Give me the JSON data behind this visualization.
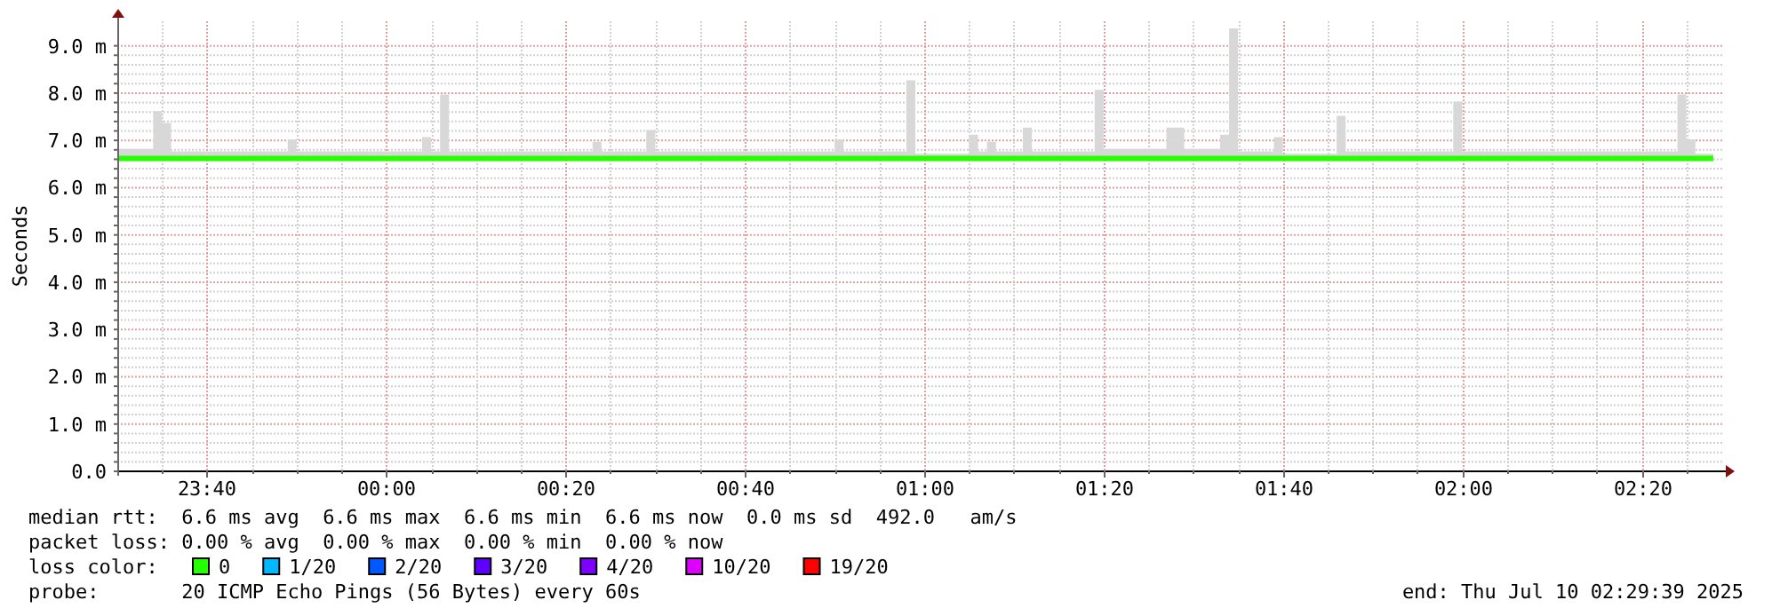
{
  "chart_data": {
    "type": "line",
    "ylabel": "Seconds",
    "legend_title": "loss color:",
    "legend": "bottom",
    "grid": true,
    "line_style": "solid",
    "marker": "none",
    "xlim": [
      "2025-07-09T23:30",
      "2025-07-10T02:29"
    ],
    "xticks": [
      {
        "value": "2025-07-09T23:35",
        "label": null
      },
      {
        "value": "2025-07-09T23:40",
        "label": "23:40"
      },
      {
        "value": "2025-07-09T23:45",
        "label": null
      },
      {
        "value": "2025-07-09T23:50",
        "label": null
      },
      {
        "value": "2025-07-09T23:55",
        "label": null
      },
      {
        "value": "2025-07-10T00:00",
        "label": "00:00"
      },
      {
        "value": "2025-07-10T00:05",
        "label": null
      },
      {
        "value": "2025-07-10T00:10",
        "label": null
      },
      {
        "value": "2025-07-10T00:15",
        "label": null
      },
      {
        "value": "2025-07-10T00:20",
        "label": "00:20"
      },
      {
        "value": "2025-07-10T00:25",
        "label": null
      },
      {
        "value": "2025-07-10T00:30",
        "label": null
      },
      {
        "value": "2025-07-10T00:35",
        "label": null
      },
      {
        "value": "2025-07-10T00:40",
        "label": "00:40"
      },
      {
        "value": "2025-07-10T00:45",
        "label": null
      },
      {
        "value": "2025-07-10T00:50",
        "label": null
      },
      {
        "value": "2025-07-10T00:55",
        "label": null
      },
      {
        "value": "2025-07-10T01:00",
        "label": "01:00"
      },
      {
        "value": "2025-07-10T01:05",
        "label": null
      },
      {
        "value": "2025-07-10T01:10",
        "label": null
      },
      {
        "value": "2025-07-10T01:15",
        "label": null
      },
      {
        "value": "2025-07-10T01:20",
        "label": "01:20"
      },
      {
        "value": "2025-07-10T01:25",
        "label": null
      },
      {
        "value": "2025-07-10T01:30",
        "label": null
      },
      {
        "value": "2025-07-10T01:35",
        "label": null
      },
      {
        "value": "2025-07-10T01:40",
        "label": "01:40"
      },
      {
        "value": "2025-07-10T01:45",
        "label": null
      },
      {
        "value": "2025-07-10T01:50",
        "label": null
      },
      {
        "value": "2025-07-10T01:55",
        "label": null
      },
      {
        "value": "2025-07-10T02:00",
        "label": "02:00"
      },
      {
        "value": "2025-07-10T02:05",
        "label": null
      },
      {
        "value": "2025-07-10T02:10",
        "label": null
      },
      {
        "value": "2025-07-10T02:15",
        "label": null
      },
      {
        "value": "2025-07-10T02:20",
        "label": "02:20"
      },
      {
        "value": "2025-07-10T02:25",
        "label": null
      }
    ],
    "ylim": [
      0,
      9.5
    ],
    "yticks": [
      {
        "value": 0,
        "label": "0.0"
      },
      {
        "value": 0.2,
        "label": null
      },
      {
        "value": 0.4,
        "label": null
      },
      {
        "value": 0.6,
        "label": null
      },
      {
        "value": 0.8,
        "label": null
      },
      {
        "value": 1,
        "label": "1.0 m"
      },
      {
        "value": 1.2,
        "label": null
      },
      {
        "value": 1.4,
        "label": null
      },
      {
        "value": 1.6,
        "label": null
      },
      {
        "value": 1.8,
        "label": null
      },
      {
        "value": 2,
        "label": "2.0 m"
      },
      {
        "value": 2.2,
        "label": null
      },
      {
        "value": 2.4,
        "label": null
      },
      {
        "value": 2.6,
        "label": null
      },
      {
        "value": 2.8,
        "label": null
      },
      {
        "value": 3,
        "label": "3.0 m"
      },
      {
        "value": 3.2,
        "label": null
      },
      {
        "value": 3.4,
        "label": null
      },
      {
        "value": 3.6,
        "label": null
      },
      {
        "value": 3.8,
        "label": null
      },
      {
        "value": 4,
        "label": "4.0 m"
      },
      {
        "value": 4.2,
        "label": null
      },
      {
        "value": 4.4,
        "label": null
      },
      {
        "value": 4.6,
        "label": null
      },
      {
        "value": 4.8,
        "label": null
      },
      {
        "value": 5,
        "label": "5.0 m"
      },
      {
        "value": 5.2,
        "label": null
      },
      {
        "value": 5.4,
        "label": null
      },
      {
        "value": 5.6,
        "label": null
      },
      {
        "value": 5.8,
        "label": null
      },
      {
        "value": 6,
        "label": "6.0 m"
      },
      {
        "value": 6.2,
        "label": null
      },
      {
        "value": 6.4,
        "label": null
      },
      {
        "value": 6.6,
        "label": null
      },
      {
        "value": 6.8,
        "label": null
      },
      {
        "value": 7,
        "label": "7.0 m"
      },
      {
        "value": 7.2,
        "label": null
      },
      {
        "value": 7.4,
        "label": null
      },
      {
        "value": 7.6,
        "label": null
      },
      {
        "value": 7.8,
        "label": null
      },
      {
        "value": 8,
        "label": "8.0 m"
      },
      {
        "value": 8.2,
        "label": null
      },
      {
        "value": 8.4,
        "label": null
      },
      {
        "value": 8.6,
        "label": null
      },
      {
        "value": 8.8,
        "label": null
      },
      {
        "value": 9,
        "label": "9.0 m"
      }
    ],
    "series": [
      {
        "name": "0",
        "color": "#26ff00",
        "x": [
          "2025-07-09T23:30",
          "2025-07-09T23:34",
          "2025-07-09T23:35",
          "2025-07-09T23:36",
          "2025-07-09T23:49",
          "2025-07-09T23:50",
          "2025-07-10T00:04",
          "2025-07-10T00:05",
          "2025-07-10T00:06",
          "2025-07-10T00:07",
          "2025-07-10T00:23",
          "2025-07-10T00:24",
          "2025-07-10T00:29",
          "2025-07-10T00:30",
          "2025-07-10T00:50",
          "2025-07-10T00:51",
          "2025-07-10T00:58",
          "2025-07-10T00:59",
          "2025-07-10T01:05",
          "2025-07-10T01:06",
          "2025-07-10T01:07",
          "2025-07-10T01:08",
          "2025-07-10T01:11",
          "2025-07-10T01:12",
          "2025-07-10T01:19",
          "2025-07-10T01:20",
          "2025-07-10T01:27",
          "2025-07-10T01:29",
          "2025-07-10T01:33",
          "2025-07-10T01:34",
          "2025-07-10T01:35",
          "2025-07-10T01:39",
          "2025-07-10T01:40",
          "2025-07-10T01:46",
          "2025-07-10T01:47",
          "2025-07-10T01:59",
          "2025-07-10T02:00",
          "2025-07-10T02:24",
          "2025-07-10T02:25",
          "2025-07-10T02:26",
          "2025-07-10T02:28"
        ],
        "values": [
          6.6,
          6.6,
          6.6,
          6.6,
          6.6,
          6.6,
          6.6,
          6.6,
          6.6,
          6.6,
          6.6,
          6.6,
          6.6,
          6.6,
          6.6,
          6.6,
          6.6,
          6.6,
          6.6,
          6.6,
          6.6,
          6.6,
          6.6,
          6.6,
          6.6,
          6.6,
          6.6,
          6.6,
          6.6,
          6.6,
          6.6,
          6.6,
          6.6,
          6.6,
          6.6,
          6.6,
          6.6,
          6.6,
          6.6,
          6.6,
          6.6
        ],
        "lower": [
          6.55,
          6.55,
          6.55,
          6.55,
          6.55,
          6.55,
          6.55,
          6.55,
          6.55,
          6.55,
          6.55,
          6.55,
          6.55,
          6.55,
          6.55,
          6.55,
          6.55,
          6.55,
          6.55,
          6.55,
          6.55,
          6.55,
          6.55,
          6.55,
          6.55,
          6.55,
          6.55,
          6.55,
          6.55,
          6.55,
          6.55,
          6.55,
          6.55,
          6.55,
          6.55,
          6.55,
          6.55,
          6.55,
          6.55,
          6.55,
          6.55
        ],
        "upper": [
          6.8,
          7.6,
          7.35,
          6.75,
          7.0,
          6.75,
          7.05,
          6.75,
          7.95,
          6.75,
          6.95,
          6.75,
          7.2,
          6.75,
          7.0,
          6.75,
          8.25,
          6.7,
          7.1,
          6.75,
          6.95,
          6.75,
          7.25,
          6.75,
          8.05,
          6.8,
          7.25,
          6.8,
          7.1,
          9.35,
          6.75,
          7.05,
          6.7,
          7.5,
          6.75,
          7.8,
          6.75,
          7.95,
          7.0,
          6.7,
          6.7
        ]
      },
      {
        "name": "1/20",
        "color": "#00b8ff"
      },
      {
        "name": "2/20",
        "color": "#0059ff"
      },
      {
        "name": "3/20",
        "color": "#5e00ff"
      },
      {
        "name": "4/20",
        "color": "#7e00ff"
      },
      {
        "name": "10/20",
        "color": "#dd00ff"
      },
      {
        "name": "19/20",
        "color": "#ff0000"
      }
    ],
    "annotations": [
      "median rtt:  6.6 ms avg  6.6 ms max  6.6 ms min  6.6 ms now  0.0 ms sd  492.0   am/s",
      "packet loss: 0.00 % avg  0.00 % max  0.00 % min  0.00 % now",
      "probe:       20 ICMP Echo Pings (56 Bytes) every 60s",
      "end: Thu Jul 10 02:29:39 2025"
    ]
  }
}
